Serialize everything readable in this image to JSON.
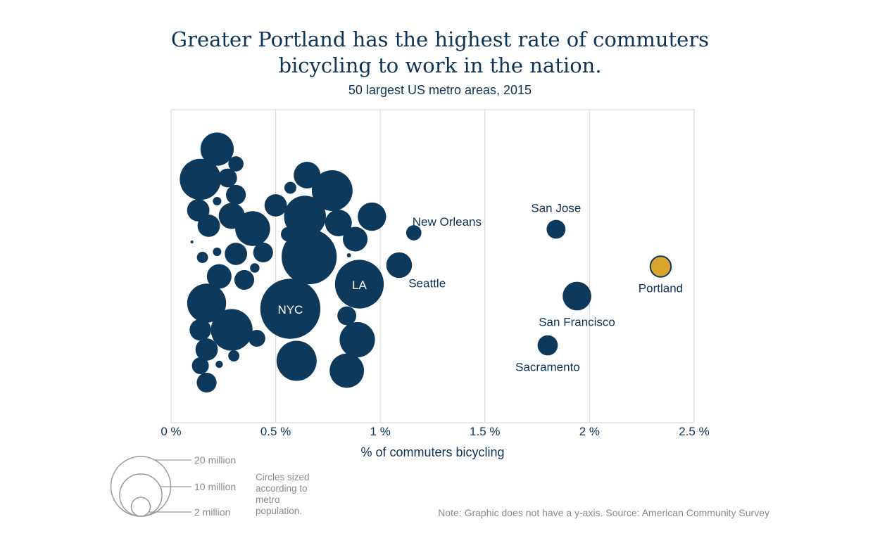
{
  "chart_data": {
    "type": "scatter",
    "title_lines": [
      "Greater Portland has the highest rate of commuters",
      "bicycling to work in the nation."
    ],
    "subtitle": "50 largest US metro areas, 2015",
    "xlabel": "% of commuters bicycling",
    "xlim": [
      0,
      2.5
    ],
    "x_ticks": [
      0,
      0.5,
      1,
      1.5,
      2,
      2.5
    ],
    "x_tick_labels": [
      "0 %",
      "0.5 %",
      "1 %",
      "1.5 %",
      "2 %",
      "2.5 %"
    ],
    "grid": "vertical",
    "y_axis": "none",
    "colors": {
      "default": "#0d3a5c",
      "highlight": "#d9a52d",
      "grid": "#dcdcdc",
      "text": "#0d3356",
      "note": "#8a8a8a"
    },
    "points": [
      {
        "x": 0.22,
        "pop": 6.2
      },
      {
        "x": 0.31,
        "pop": 1.3
      },
      {
        "x": 0.14,
        "pop": 9.5
      },
      {
        "x": 0.27,
        "pop": 2.0
      },
      {
        "x": 0.31,
        "pop": 2.2
      },
      {
        "x": 0.22,
        "pop": 0.4
      },
      {
        "x": 0.13,
        "pop": 2.8
      },
      {
        "x": 0.29,
        "pop": 3.8
      },
      {
        "x": 0.18,
        "pop": 2.8
      },
      {
        "x": 0.39,
        "pop": 6.8
      },
      {
        "x": 0.31,
        "pop": 2.8
      },
      {
        "x": 0.15,
        "pop": 0.7
      },
      {
        "x": 0.22,
        "pop": 0.4
      },
      {
        "x": 0.44,
        "pop": 2.2
      },
      {
        "x": 0.4,
        "pop": 0.5
      },
      {
        "x": 0.35,
        "pop": 2.2
      },
      {
        "x": 0.23,
        "pop": 3.4
      },
      {
        "x": 0.17,
        "pop": 8.5
      },
      {
        "x": 0.14,
        "pop": 2.6
      },
      {
        "x": 0.29,
        "pop": 9.7
      },
      {
        "x": 0.41,
        "pop": 1.6
      },
      {
        "x": 0.17,
        "pop": 2.8
      },
      {
        "x": 0.3,
        "pop": 0.7
      },
      {
        "x": 0.14,
        "pop": 1.6
      },
      {
        "x": 0.23,
        "pop": 0.3
      },
      {
        "x": 0.17,
        "pop": 2.2
      },
      {
        "x": 0.65,
        "pop": 4.0
      },
      {
        "x": 0.57,
        "pop": 0.8
      },
      {
        "x": 0.77,
        "pop": 9.3
      },
      {
        "x": 0.5,
        "pop": 2.8
      },
      {
        "x": 0.64,
        "pop": 9.8
      },
      {
        "x": 0.8,
        "pop": 4.0
      },
      {
        "x": 0.96,
        "pop": 4.5
      },
      {
        "x": 0.56,
        "pop": 1.2
      },
      {
        "x": 0.88,
        "pop": 3.4
      },
      {
        "x": 0.66,
        "pop": 17.0
      },
      {
        "x": 0.85,
        "pop": 0.1
      },
      {
        "x": 0.84,
        "pop": 2.0
      },
      {
        "x": 0.89,
        "pop": 7.0
      },
      {
        "x": 0.6,
        "pop": 9.0
      },
      {
        "x": 0.84,
        "pop": 6.6
      },
      {
        "x": 0.1,
        "pop": 0.05
      },
      {
        "x": 0.57,
        "pop": 20.2,
        "label": "NYC",
        "label_pos": "inside"
      },
      {
        "x": 0.9,
        "pop": 13.3,
        "label": "LA",
        "label_pos": "inside"
      },
      {
        "x": 1.09,
        "pop": 3.7,
        "label": "Seattle",
        "label_pos": "below-right"
      },
      {
        "x": 1.16,
        "pop": 1.3,
        "label": "New Orleans",
        "label_pos": "above-right"
      },
      {
        "x": 1.84,
        "pop": 2.0,
        "label": "San Jose",
        "label_pos": "above"
      },
      {
        "x": 1.94,
        "pop": 4.6,
        "label": "San Francisco",
        "label_pos": "below"
      },
      {
        "x": 1.8,
        "pop": 2.3,
        "label": "Sacramento",
        "label_pos": "below"
      },
      {
        "x": 2.34,
        "pop": 2.4,
        "label": "Portland",
        "label_pos": "below",
        "highlight": true
      }
    ],
    "size_legend": {
      "entries": [
        {
          "pop": 20,
          "label": "20 million"
        },
        {
          "pop": 10,
          "label": "10 million"
        },
        {
          "pop": 2,
          "label": "2 million"
        }
      ],
      "note": "Circles sized according to metro population."
    },
    "footnote": "Note: Graphic does not have a y-axis. Source: American Community Survey"
  }
}
